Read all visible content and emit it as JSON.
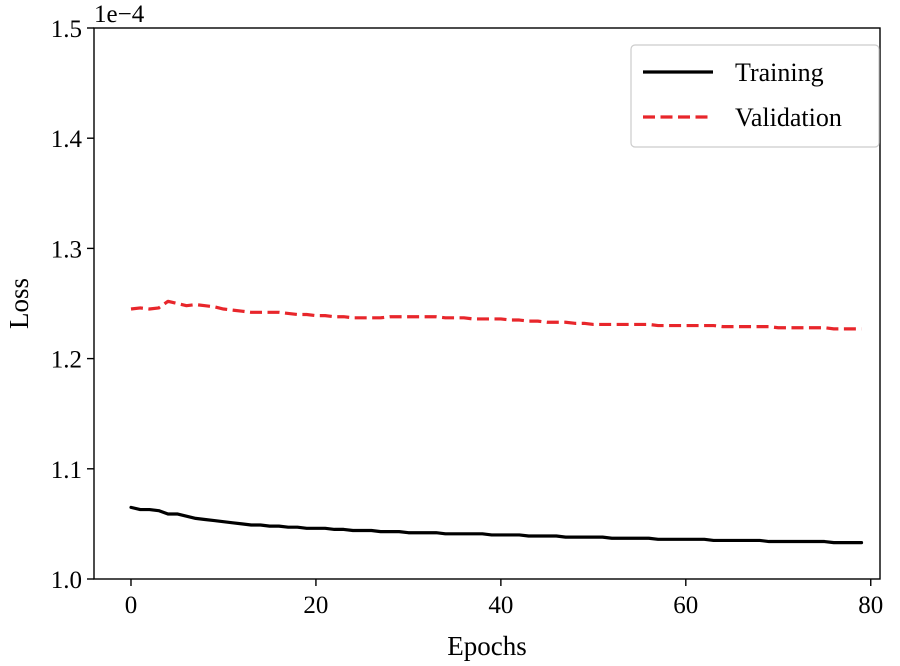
{
  "chart_data": {
    "type": "line",
    "title": "",
    "xlabel": "Epochs",
    "ylabel": "Loss",
    "y_scale_label": "1e−4",
    "xlim": [
      -4,
      81
    ],
    "ylim": [
      1.0,
      1.5
    ],
    "xticks": [
      0,
      20,
      40,
      60,
      80
    ],
    "xtick_labels": [
      "0",
      "20",
      "40",
      "60",
      "80"
    ],
    "yticks": [
      1.0,
      1.1,
      1.2,
      1.3,
      1.4,
      1.5
    ],
    "ytick_labels": [
      "1.0",
      "1.1",
      "1.2",
      "1.3",
      "1.4",
      "1.5"
    ],
    "grid": false,
    "legend_position": "top-right",
    "series": [
      {
        "name": "Training",
        "color": "#000000",
        "dash": "solid",
        "x": [
          0,
          1,
          2,
          3,
          4,
          5,
          6,
          7,
          8,
          9,
          10,
          11,
          12,
          13,
          14,
          15,
          16,
          17,
          18,
          19,
          20,
          21,
          22,
          23,
          24,
          25,
          26,
          27,
          28,
          29,
          30,
          31,
          32,
          33,
          34,
          35,
          36,
          37,
          38,
          39,
          40,
          41,
          42,
          43,
          44,
          45,
          46,
          47,
          48,
          49,
          50,
          51,
          52,
          53,
          54,
          55,
          56,
          57,
          58,
          59,
          60,
          61,
          62,
          63,
          64,
          65,
          66,
          67,
          68,
          69,
          70,
          71,
          72,
          73,
          74,
          75,
          76,
          77,
          78,
          79
        ],
        "y": [
          1.065,
          1.063,
          1.063,
          1.062,
          1.059,
          1.059,
          1.057,
          1.055,
          1.054,
          1.053,
          1.052,
          1.051,
          1.05,
          1.049,
          1.049,
          1.048,
          1.048,
          1.047,
          1.047,
          1.046,
          1.046,
          1.046,
          1.045,
          1.045,
          1.044,
          1.044,
          1.044,
          1.043,
          1.043,
          1.043,
          1.042,
          1.042,
          1.042,
          1.042,
          1.041,
          1.041,
          1.041,
          1.041,
          1.041,
          1.04,
          1.04,
          1.04,
          1.04,
          1.039,
          1.039,
          1.039,
          1.039,
          1.038,
          1.038,
          1.038,
          1.038,
          1.038,
          1.037,
          1.037,
          1.037,
          1.037,
          1.037,
          1.036,
          1.036,
          1.036,
          1.036,
          1.036,
          1.036,
          1.035,
          1.035,
          1.035,
          1.035,
          1.035,
          1.035,
          1.034,
          1.034,
          1.034,
          1.034,
          1.034,
          1.034,
          1.034,
          1.033,
          1.033,
          1.033,
          1.033
        ]
      },
      {
        "name": "Validation",
        "color": "#e8262b",
        "dash": "dashed",
        "x": [
          0,
          1,
          2,
          3,
          4,
          5,
          6,
          7,
          8,
          9,
          10,
          11,
          12,
          13,
          14,
          15,
          16,
          17,
          18,
          19,
          20,
          21,
          22,
          23,
          24,
          25,
          26,
          27,
          28,
          29,
          30,
          31,
          32,
          33,
          34,
          35,
          36,
          37,
          38,
          39,
          40,
          41,
          42,
          43,
          44,
          45,
          46,
          47,
          48,
          49,
          50,
          51,
          52,
          53,
          54,
          55,
          56,
          57,
          58,
          59,
          60,
          61,
          62,
          63,
          64,
          65,
          66,
          67,
          68,
          69,
          70,
          71,
          72,
          73,
          74,
          75,
          76,
          77,
          78,
          79
        ],
        "y": [
          1.245,
          1.246,
          1.245,
          1.246,
          1.252,
          1.25,
          1.248,
          1.249,
          1.248,
          1.247,
          1.245,
          1.244,
          1.243,
          1.242,
          1.242,
          1.242,
          1.242,
          1.241,
          1.24,
          1.24,
          1.239,
          1.239,
          1.238,
          1.238,
          1.237,
          1.237,
          1.237,
          1.237,
          1.238,
          1.238,
          1.238,
          1.238,
          1.238,
          1.238,
          1.237,
          1.237,
          1.237,
          1.236,
          1.236,
          1.236,
          1.236,
          1.235,
          1.235,
          1.234,
          1.234,
          1.233,
          1.233,
          1.233,
          1.232,
          1.232,
          1.231,
          1.231,
          1.231,
          1.231,
          1.231,
          1.231,
          1.231,
          1.23,
          1.23,
          1.23,
          1.23,
          1.23,
          1.23,
          1.23,
          1.229,
          1.229,
          1.229,
          1.229,
          1.229,
          1.229,
          1.228,
          1.228,
          1.228,
          1.228,
          1.228,
          1.228,
          1.227,
          1.227,
          1.227,
          1.227
        ]
      }
    ]
  }
}
